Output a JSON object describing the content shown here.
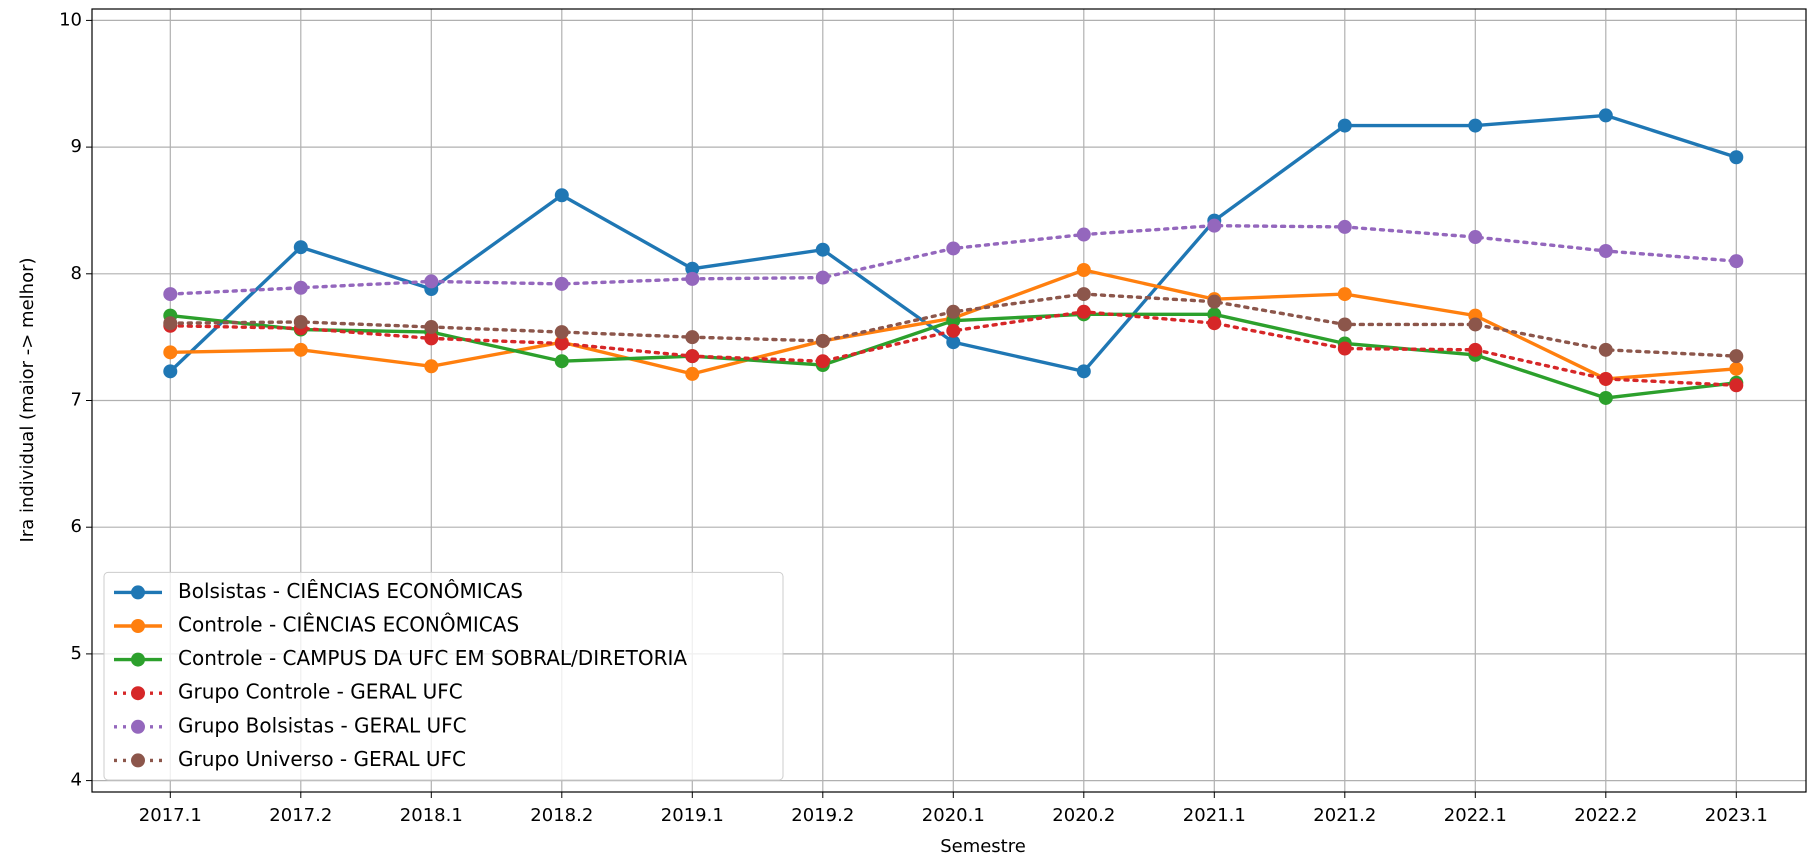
{
  "chart_data": {
    "type": "line",
    "xlabel": "Semestre",
    "ylabel": "Ira individual (maior -> melhor)",
    "categories": [
      "2017.1",
      "2017.2",
      "2018.1",
      "2018.2",
      "2019.1",
      "2019.2",
      "2020.1",
      "2020.2",
      "2021.1",
      "2021.2",
      "2022.1",
      "2022.2",
      "2023.1"
    ],
    "ylim": [
      3.91,
      10.09
    ],
    "yticks": [
      4,
      5,
      6,
      7,
      8,
      9,
      10
    ],
    "grid": true,
    "legend": "lower left",
    "series": [
      {
        "name": "Bolsistas - CIÊNCIAS ECONÔMICAS",
        "color": "#1f77b4",
        "linestyle": "solid",
        "values": [
          7.23,
          8.21,
          7.88,
          8.62,
          8.04,
          8.19,
          7.46,
          7.23,
          8.42,
          9.17,
          9.17,
          9.25,
          8.92
        ]
      },
      {
        "name": "Controle - CIÊNCIAS ECONÔMICAS",
        "color": "#ff7f0e",
        "linestyle": "solid",
        "values": [
          7.38,
          7.4,
          7.27,
          7.46,
          7.21,
          7.47,
          7.65,
          8.03,
          7.8,
          7.84,
          7.67,
          7.17,
          7.25
        ]
      },
      {
        "name": "Controle - CAMPUS DA UFC EM SOBRAL/DIRETORIA",
        "color": "#2ca02c",
        "linestyle": "solid",
        "values": [
          7.67,
          7.56,
          7.54,
          7.31,
          7.35,
          7.28,
          7.63,
          7.68,
          7.68,
          7.45,
          7.36,
          7.02,
          7.14
        ]
      },
      {
        "name": "Grupo Controle - GERAL UFC",
        "color": "#d62728",
        "linestyle": "dotted",
        "values": [
          7.59,
          7.57,
          7.49,
          7.45,
          7.35,
          7.31,
          7.55,
          7.7,
          7.61,
          7.41,
          7.4,
          7.17,
          7.12
        ]
      },
      {
        "name": "Grupo Bolsistas - GERAL UFC",
        "color": "#9467bd",
        "linestyle": "dotted",
        "values": [
          7.84,
          7.89,
          7.94,
          7.92,
          7.96,
          7.97,
          8.2,
          8.31,
          8.38,
          8.37,
          8.29,
          8.18,
          8.1
        ]
      },
      {
        "name": "Grupo Universo - GERAL UFC",
        "color": "#8c564b",
        "linestyle": "dotted",
        "values": [
          7.61,
          7.62,
          7.58,
          7.54,
          7.5,
          7.47,
          7.7,
          7.84,
          7.78,
          7.6,
          7.6,
          7.4,
          7.35
        ]
      }
    ]
  }
}
